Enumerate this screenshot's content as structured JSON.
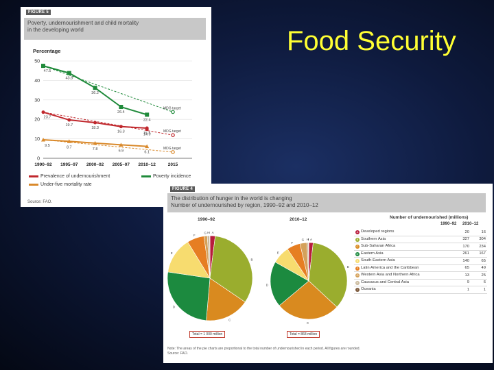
{
  "slide": {
    "title": "Food Security"
  },
  "figure5": {
    "tag": "FIGURE 5",
    "title_line1": "Poverty, undernourishment and child mortality",
    "title_line2": "in the developing world",
    "source": "Source: FAO."
  },
  "figure4": {
    "tag": "FIGURE 4",
    "title_line1": "The distribution of hunger in the world is changing",
    "title_line2": "Number of undernourished by region, 1990–92 and 2010–12",
    "note_line1": "Note: The areas of the pie charts are proportional to the total number of undernourished in each period. All figures are rounded.",
    "note_line2": "Source: FAO.",
    "table_header": "Number of undernourished (millions)",
    "col1": "1990–92",
    "col2": "2010–12",
    "rows": [
      {
        "key": "A",
        "label": "Developed regions",
        "v1": "20",
        "v2": "16",
        "color": "#b71c3c"
      },
      {
        "key": "B",
        "label": "Southern Asia",
        "v1": "327",
        "v2": "304",
        "color": "#9aad2e"
      },
      {
        "key": "C",
        "label": "Sub-Saharan Africa",
        "v1": "170",
        "v2": "234",
        "color": "#d98a1f"
      },
      {
        "key": "D",
        "label": "Eastern Asia",
        "v1": "261",
        "v2": "167",
        "color": "#1c8a3f"
      },
      {
        "key": "E",
        "label": "South-Eastern Asia",
        "v1": "140",
        "v2": "65",
        "color": "#f7dc6f"
      },
      {
        "key": "F",
        "label": "Latin America and the Caribbean",
        "v1": "65",
        "v2": "49",
        "color": "#e67e22"
      },
      {
        "key": "G",
        "label": "Western Asia and Northern Africa",
        "v1": "13",
        "v2": "25",
        "color": "#d4a15a"
      },
      {
        "key": "H",
        "label": "Caucasus and Central Asia",
        "v1": "9",
        "v2": "6",
        "color": "#c9b89a"
      },
      {
        "key": "I",
        "label": "Oceania",
        "v1": "1",
        "v2": "1",
        "color": "#7d5a3c"
      }
    ]
  },
  "chart_data": [
    {
      "type": "line",
      "title": "",
      "ylabel": "Percentage",
      "ylim": [
        0,
        50
      ],
      "yticks": [
        0,
        10,
        20,
        30,
        40,
        50
      ],
      "categories": [
        "1990–92",
        "1995–97",
        "2000–02",
        "2005–07",
        "2010–12",
        "2015"
      ],
      "series": [
        {
          "name": "Poverty incidence",
          "color": "#1f8a3a",
          "values": [
            47.5,
            43.8,
            36.2,
            26.4,
            22.4,
            null
          ],
          "labels": [
            "47.5",
            "43.8",
            "36.2",
            "26.4",
            "22.4",
            ""
          ],
          "target": 23.8,
          "target_label": "MDG target"
        },
        {
          "name": "Prevalence of undernourishment",
          "color": "#c0282d",
          "values": [
            23.7,
            19.7,
            18.3,
            16.3,
            15.5,
            null
          ],
          "labels": [
            "23.7",
            "19.7",
            "18.3",
            "16.3",
            "15.5",
            ""
          ],
          "extra": {
            "x": 4.0,
            "value": 14.9,
            "label": "14.9"
          },
          "target": 11.9,
          "target_label": "MDG target"
        },
        {
          "name": "Under-five mortality rate",
          "color": "#d9892b",
          "values": [
            9.5,
            8.7,
            7.8,
            6.9,
            6.1,
            null
          ],
          "labels": [
            "9.5",
            "8.7",
            "7.8",
            "6.9",
            "6.1",
            ""
          ],
          "target": 3.2,
          "target_label": "MDG target"
        }
      ]
    },
    {
      "type": "pie",
      "title": "1990–92",
      "categories": [
        "A",
        "B",
        "C",
        "D",
        "E",
        "F",
        "G",
        "H",
        "I"
      ],
      "values": [
        20,
        327,
        170,
        261,
        140,
        65,
        13,
        9,
        1
      ],
      "total_label": "Total = 1 000 million"
    },
    {
      "type": "pie",
      "title": "2010–12",
      "categories": [
        "A",
        "B",
        "C",
        "D",
        "E",
        "F",
        "G",
        "H",
        "I"
      ],
      "values": [
        16,
        304,
        234,
        167,
        65,
        49,
        25,
        6,
        1
      ],
      "total_label": "Total = 868 million"
    }
  ]
}
